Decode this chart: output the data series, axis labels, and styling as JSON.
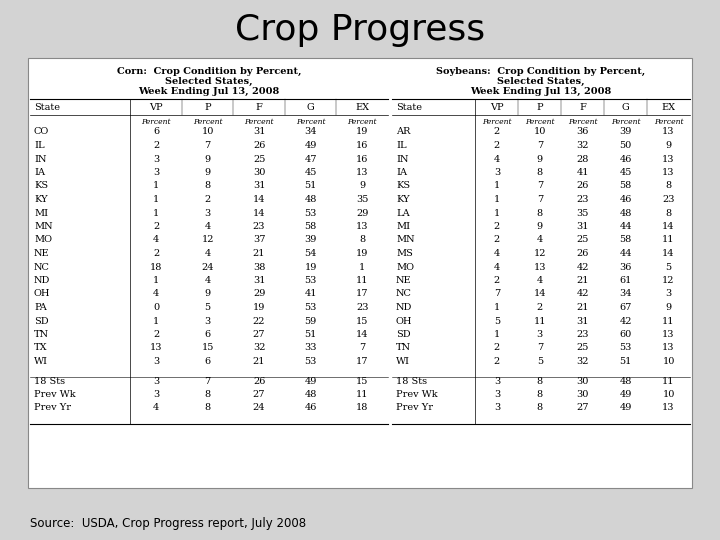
{
  "title": "Crop Progress",
  "source": "Source:  USDA, Crop Progress report, July 2008",
  "bg_color": "#d3d3d3",
  "corn_title_line1": "Corn:  Crop Condition by Percent,",
  "corn_title_line2": "Selected States,",
  "corn_title_line3": "Week Ending Jul 13, 2008",
  "soy_title_line1": "Soybeans:  Crop Condition by Percent,",
  "soy_title_line2": "Selected States,",
  "soy_title_line3": "Week Ending Jul 13, 2008",
  "corn_rows": [
    [
      "CO",
      "6",
      "10",
      "31",
      "34",
      "19"
    ],
    [
      "IL",
      "2",
      "7",
      "26",
      "49",
      "16"
    ],
    [
      "IN",
      "3",
      "9",
      "25",
      "47",
      "16"
    ],
    [
      "IA",
      "3",
      "9",
      "30",
      "45",
      "13"
    ],
    [
      "KS",
      "1",
      "8",
      "31",
      "51",
      "9"
    ],
    [
      "KY",
      "1",
      "2",
      "14",
      "48",
      "35"
    ],
    [
      "MI",
      "1",
      "3",
      "14",
      "53",
      "29"
    ],
    [
      "MN",
      "2",
      "4",
      "23",
      "58",
      "13"
    ],
    [
      "MO",
      "4",
      "12",
      "37",
      "39",
      "8"
    ],
    [
      "NE",
      "2",
      "4",
      "21",
      "54",
      "19"
    ],
    [
      "NC",
      "18",
      "24",
      "38",
      "19",
      "1"
    ],
    [
      "ND",
      "1",
      "4",
      "31",
      "53",
      "11"
    ],
    [
      "OH",
      "4",
      "9",
      "29",
      "41",
      "17"
    ],
    [
      "PA",
      "0",
      "5",
      "19",
      "53",
      "23"
    ],
    [
      "SD",
      "1",
      "3",
      "22",
      "59",
      "15"
    ],
    [
      "TN",
      "2",
      "6",
      "27",
      "51",
      "14"
    ],
    [
      "TX",
      "13",
      "15",
      "32",
      "33",
      "7"
    ],
    [
      "WI",
      "3",
      "6",
      "21",
      "53",
      "17"
    ]
  ],
  "corn_summary": [
    [
      "18 Sts",
      "3",
      "7",
      "26",
      "49",
      "15"
    ],
    [
      "Prev Wk",
      "3",
      "8",
      "27",
      "48",
      "11"
    ],
    [
      "Prev Yr",
      "4",
      "8",
      "24",
      "46",
      "18"
    ]
  ],
  "soy_rows": [
    [
      "AR",
      "2",
      "10",
      "36",
      "39",
      "13"
    ],
    [
      "IL",
      "2",
      "7",
      "32",
      "50",
      "9"
    ],
    [
      "IN",
      "4",
      "9",
      "28",
      "46",
      "13"
    ],
    [
      "IA",
      "3",
      "8",
      "41",
      "45",
      "13"
    ],
    [
      "KS",
      "1",
      "7",
      "26",
      "58",
      "8"
    ],
    [
      "KY",
      "1",
      "7",
      "23",
      "46",
      "23"
    ],
    [
      "LA",
      "1",
      "8",
      "35",
      "48",
      "8"
    ],
    [
      "MI",
      "2",
      "9",
      "31",
      "44",
      "14"
    ],
    [
      "MN",
      "2",
      "4",
      "25",
      "58",
      "11"
    ],
    [
      "MS",
      "4",
      "12",
      "26",
      "44",
      "14"
    ],
    [
      "MO",
      "4",
      "13",
      "42",
      "36",
      "5"
    ],
    [
      "NE",
      "2",
      "4",
      "21",
      "61",
      "12"
    ],
    [
      "NC",
      "7",
      "14",
      "42",
      "34",
      "3"
    ],
    [
      "ND",
      "1",
      "2",
      "21",
      "67",
      "9"
    ],
    [
      "OH",
      "5",
      "11",
      "31",
      "42",
      "11"
    ],
    [
      "SD",
      "1",
      "3",
      "23",
      "60",
      "13"
    ],
    [
      "TN",
      "2",
      "7",
      "25",
      "53",
      "13"
    ],
    [
      "WI",
      "2",
      "5",
      "32",
      "51",
      "10"
    ]
  ],
  "soy_summary": [
    [
      "18 Sts",
      "3",
      "8",
      "30",
      "48",
      "11"
    ],
    [
      "Prev Wk",
      "3",
      "8",
      "30",
      "49",
      "10"
    ],
    [
      "Prev Yr",
      "3",
      "8",
      "27",
      "49",
      "13"
    ]
  ]
}
